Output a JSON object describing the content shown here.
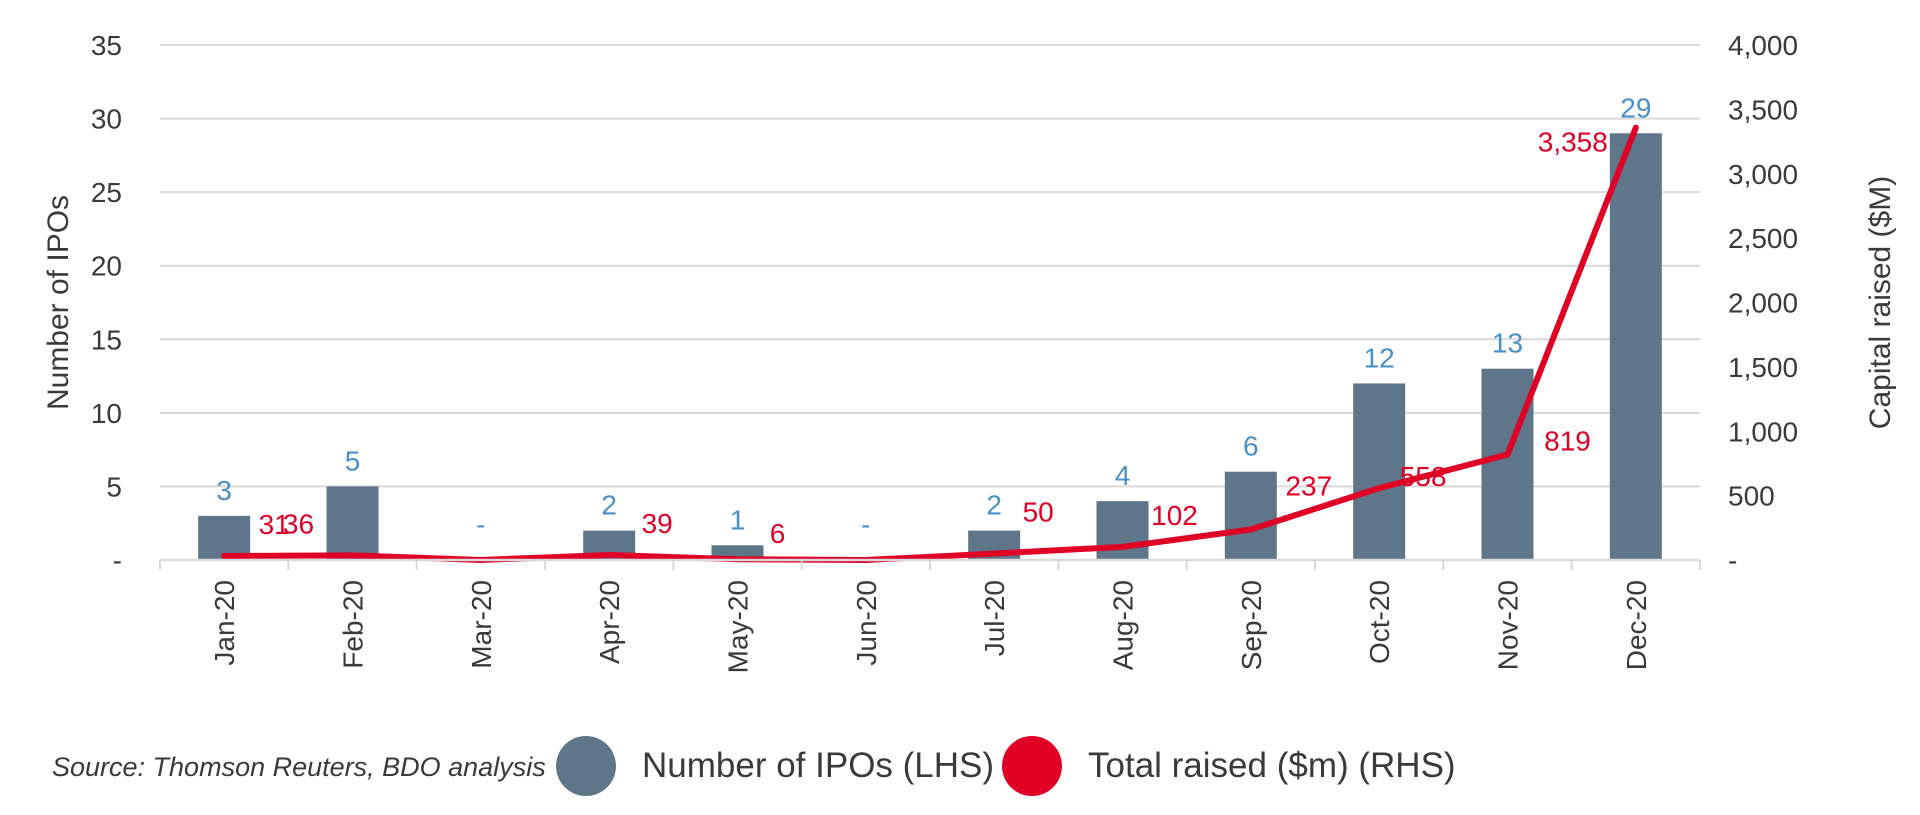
{
  "colors": {
    "bar": "#5f7589",
    "line": "#e00025",
    "bar_label": "#4a90c8",
    "line_label": "#e00025",
    "grid": "#d9d9d9",
    "axis_text": "#3a3a3a"
  },
  "chart_data": {
    "type": "bar+line",
    "categories": [
      "Jan-20",
      "Feb-20",
      "Mar-20",
      "Apr-20",
      "May-20",
      "Jun-20",
      "Jul-20",
      "Aug-20",
      "Sep-20",
      "Oct-20",
      "Nov-20",
      "Dec-20"
    ],
    "series": [
      {
        "name": "Number of IPOs (LHS)",
        "type": "bar",
        "axis": "left",
        "values": [
          3,
          5,
          0,
          2,
          1,
          0,
          2,
          4,
          6,
          12,
          13,
          29
        ],
        "labels": [
          "3",
          "5",
          "-",
          "2",
          "1",
          "-",
          "2",
          "4",
          "6",
          "12",
          "13",
          "29"
        ]
      },
      {
        "name": "Total raised ($m) (RHS)",
        "type": "line",
        "axis": "right",
        "values": [
          31,
          36,
          0,
          39,
          6,
          0,
          50,
          102,
          237,
          558,
          819,
          3358
        ],
        "labels": [
          "31",
          "36",
          "",
          "39",
          "6",
          "",
          "50",
          "102",
          "237",
          "558",
          "819",
          "3,358"
        ]
      }
    ],
    "y_left": {
      "label": "Number of IPOs",
      "min": 0,
      "max": 35,
      "ticks": [
        "-",
        "5",
        "10",
        "15",
        "20",
        "25",
        "30",
        "35"
      ]
    },
    "y_right": {
      "label": "Capital raised ($M)",
      "min": 0,
      "max": 4000,
      "ticks": [
        "-",
        "500",
        "1,000",
        "1,500",
        "2,000",
        "2,500",
        "3,000",
        "3,500",
        "4,000"
      ]
    },
    "grid": true,
    "legend_position": "bottom"
  },
  "footer": {
    "source": "Source: Thomson Reuters, BDO analysis"
  }
}
